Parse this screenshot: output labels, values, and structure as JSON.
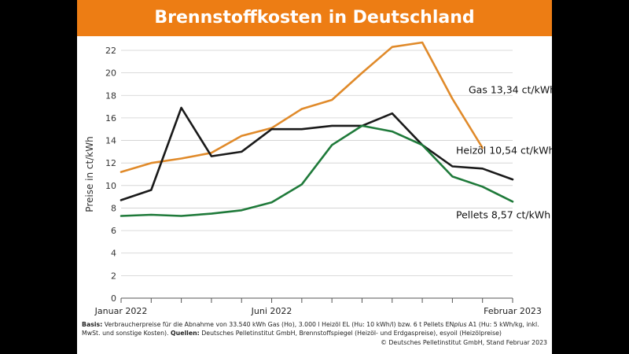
{
  "chart_data": {
    "type": "line",
    "title": "Brennstoffkosten in Deutschland",
    "ylabel": "Preise in ct/kWh",
    "ylim": [
      0,
      22
    ],
    "yticks": [
      0,
      2,
      4,
      6,
      8,
      10,
      12,
      14,
      16,
      18,
      20,
      22
    ],
    "x_index_range": [
      0,
      13
    ],
    "xtick_labels": [
      {
        "label": "Januar 2022",
        "index": 0
      },
      {
        "label": "Juni 2022",
        "index": 5
      },
      {
        "label": "Februar 2023",
        "index": 13
      }
    ],
    "grid": true,
    "series": [
      {
        "name": "Gas",
        "value_label": "13,34 ct/kWh",
        "color": "#e08a2a",
        "x": [
          0,
          1,
          2,
          3,
          4,
          5,
          6,
          7,
          8,
          9,
          10,
          11,
          12
        ],
        "values": [
          11.2,
          12.0,
          12.4,
          12.9,
          14.4,
          15.1,
          16.8,
          17.6,
          20.0,
          22.3,
          22.7,
          17.7,
          13.34
        ]
      },
      {
        "name": "Heizöl",
        "value_label": "10,54 ct/kWh",
        "color": "#1a1a1a",
        "x": [
          0,
          1,
          2,
          3,
          4,
          5,
          6,
          7,
          8,
          9,
          10,
          11,
          12,
          13
        ],
        "values": [
          8.7,
          9.6,
          16.9,
          12.6,
          13.0,
          15.0,
          15.0,
          15.3,
          15.3,
          16.4,
          13.6,
          11.7,
          11.5,
          10.54
        ]
      },
      {
        "name": "Pellets",
        "value_label": "8,57 ct/kWh",
        "color": "#1f7a3a",
        "x": [
          0,
          1,
          2,
          3,
          4,
          5,
          6,
          7,
          8,
          9,
          10,
          11,
          12,
          13
        ],
        "values": [
          7.3,
          7.4,
          7.3,
          7.5,
          7.8,
          8.5,
          10.1,
          13.6,
          15.3,
          14.8,
          13.6,
          10.8,
          9.9,
          8.57
        ]
      }
    ]
  },
  "footnote": {
    "basis_label": "Basis:",
    "basis_text": " Verbraucherpreise für die Abnahme von 33.540 kWh Gas (Ho), 3.000 l Heizöl EL (Hu: 10 kWh/l) bzw. 6 t Pellets EN",
    "basis_italic": "plus",
    "basis_text2": " A1 (Hu: 5 kWh/kg, inkl. MwSt. und sonstige Kosten). ",
    "sources_label": "Quellen:",
    "sources_text": " Deutsches Pelletinstitut GmbH, Brennstoffspiegel (Heizöl- und Erdgaspreise), esyoil (Heizölpreise)",
    "credit": "© Deutsches Pelletinstitut GmbH, Stand Februar 2023"
  }
}
